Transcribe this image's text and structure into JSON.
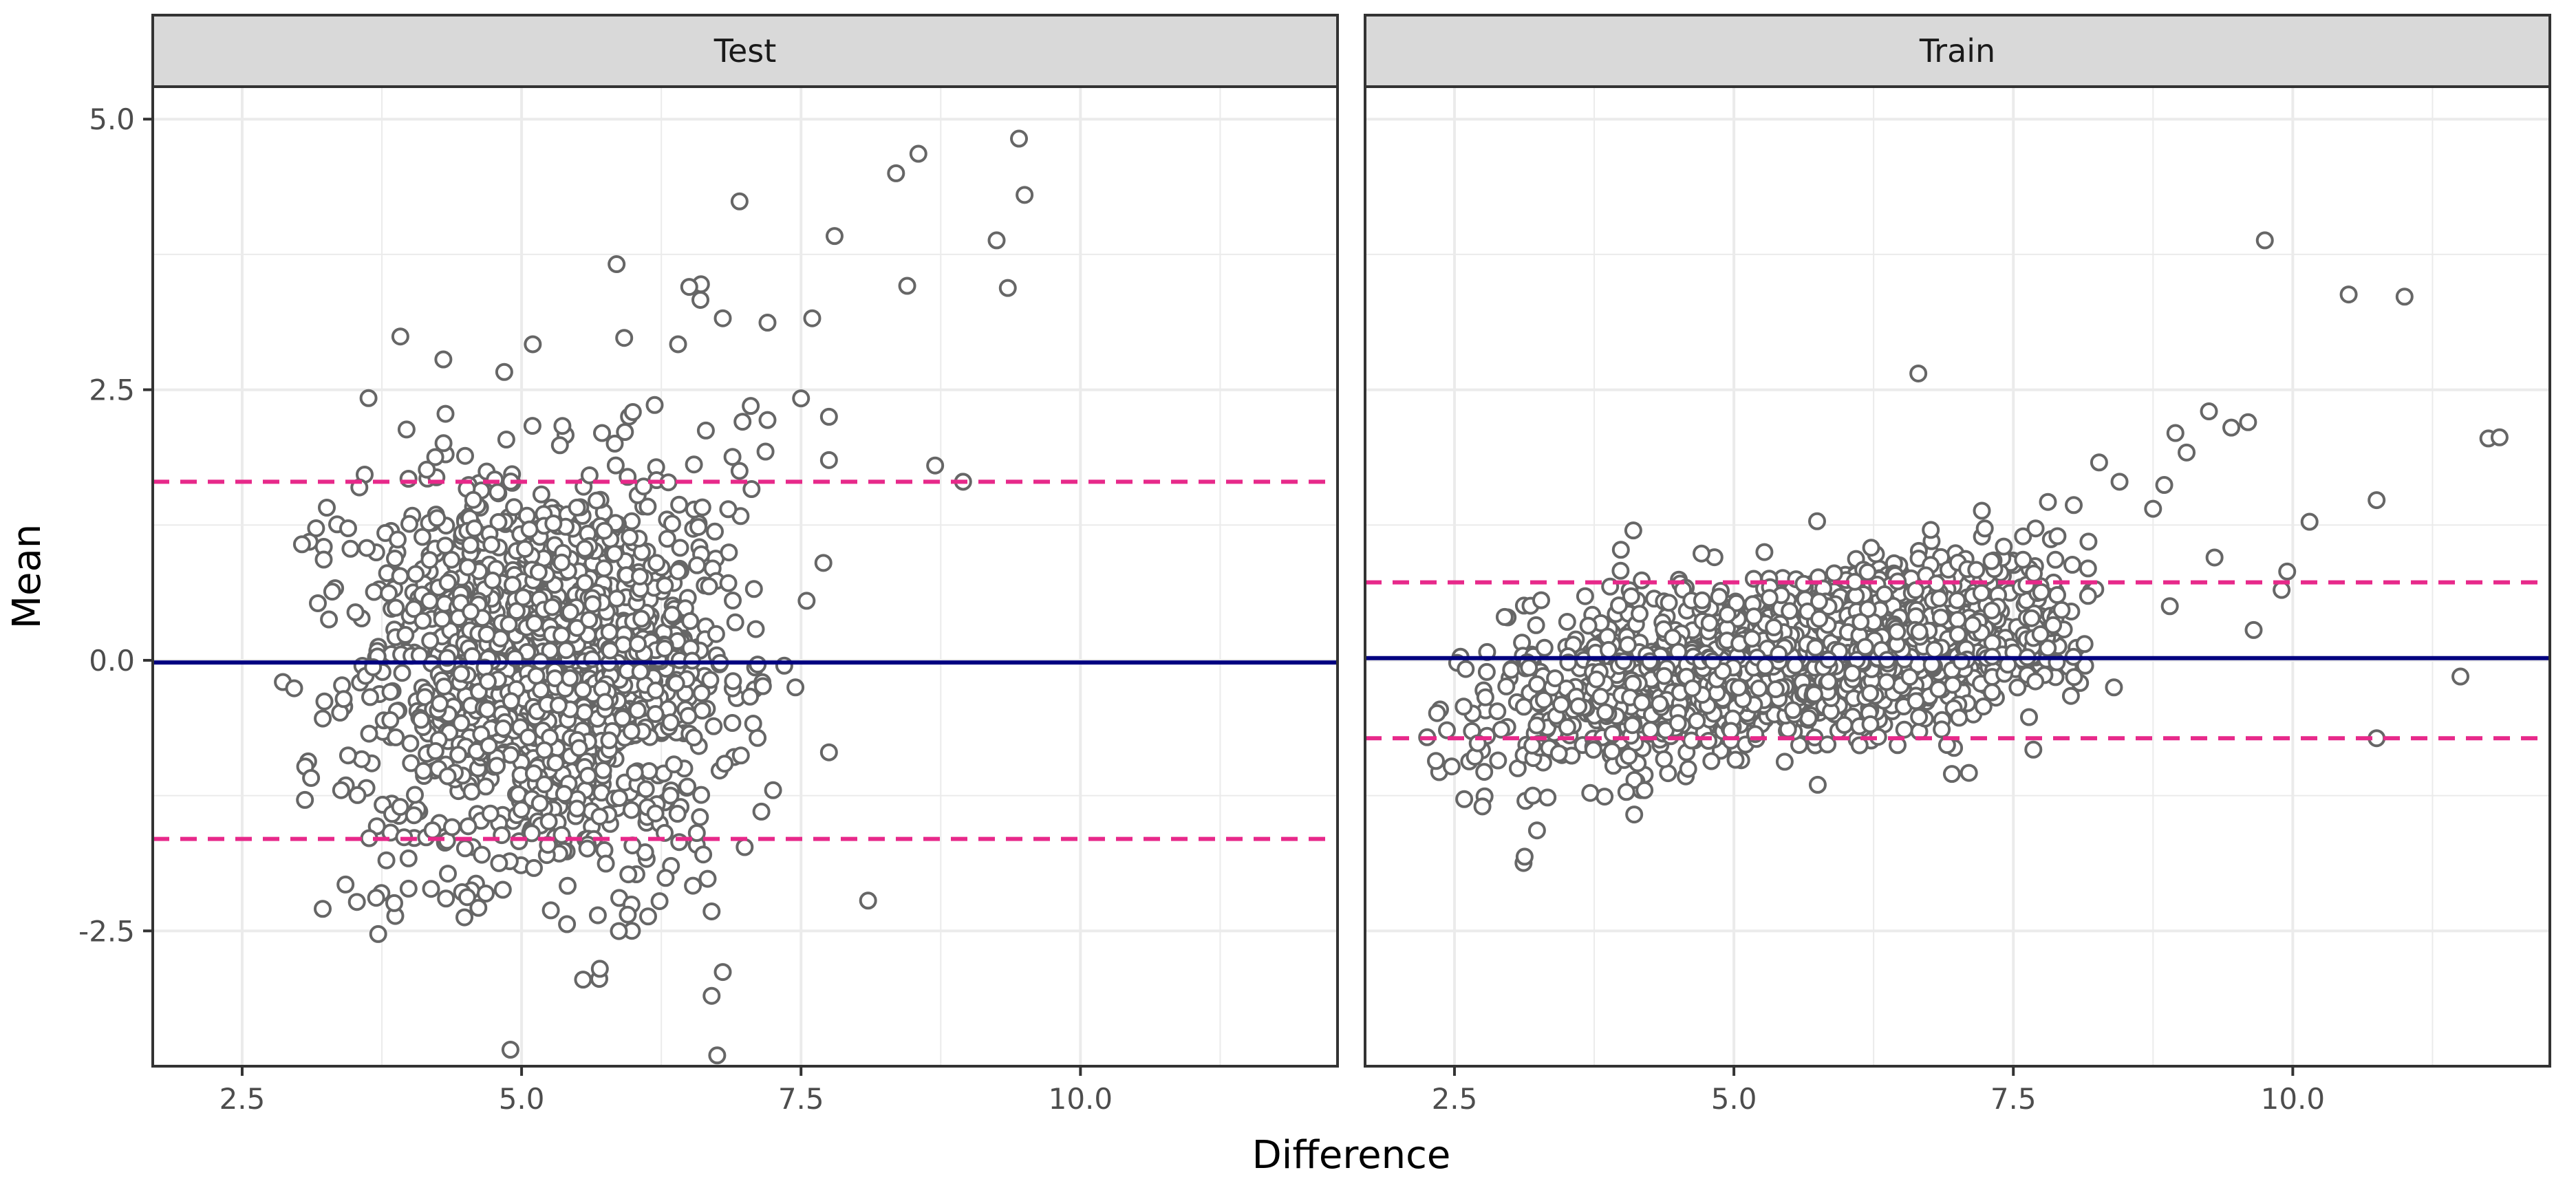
{
  "chart_data": {
    "type": "scatter",
    "title": "",
    "xlabel": "Difference",
    "ylabel": "Mean",
    "xlim": [
      1.7,
      12.3
    ],
    "ylim": [
      -3.75,
      5.3
    ],
    "xticks": [
      2.5,
      5.0,
      7.5,
      10.0
    ],
    "xtick_labels": [
      "2.5",
      "5.0",
      "7.5",
      "10.0"
    ],
    "yticks": [
      -2.5,
      0.0,
      2.5,
      5.0
    ],
    "ytick_labels": [
      "-2.5",
      "0.0",
      "2.5",
      "5.0"
    ],
    "colors": {
      "points": "#666666",
      "mean_line": "#000080",
      "limit_lines": "#E7298A",
      "strip": "#D9D9D9",
      "grid": "#EBEBEB"
    },
    "panels": [
      {
        "name": "Test",
        "mean": -0.02,
        "upper_limit": 1.65,
        "lower_limit": -1.65,
        "cloud": {
          "count": 1400,
          "x_center": 5.2,
          "x_sd": 0.85,
          "x_min": 2.8,
          "x_max": 7.2,
          "y_sd_base": 0.85,
          "y_sd_slope": 0.12,
          "y_trend_slope": 0.0
        },
        "outliers": [
          [
            9.45,
            4.82
          ],
          [
            9.5,
            4.3
          ],
          [
            8.55,
            4.68
          ],
          [
            8.35,
            4.5
          ],
          [
            6.95,
            4.24
          ],
          [
            7.8,
            3.92
          ],
          [
            9.25,
            3.88
          ],
          [
            9.35,
            3.44
          ],
          [
            8.45,
            3.46
          ],
          [
            5.85,
            3.66
          ],
          [
            6.5,
            3.45
          ],
          [
            6.6,
            3.33
          ],
          [
            7.6,
            3.16
          ],
          [
            7.2,
            3.12
          ],
          [
            6.8,
            3.16
          ],
          [
            8.7,
            1.8
          ],
          [
            8.95,
            1.65
          ],
          [
            7.75,
            2.25
          ],
          [
            7.75,
            1.85
          ],
          [
            7.5,
            2.42
          ],
          [
            7.2,
            2.22
          ],
          [
            7.7,
            0.9
          ],
          [
            7.55,
            0.55
          ],
          [
            7.45,
            -0.25
          ],
          [
            7.35,
            -0.05
          ],
          [
            7.75,
            -0.85
          ],
          [
            7.25,
            -1.2
          ],
          [
            8.1,
            -2.22
          ],
          [
            6.7,
            -2.32
          ],
          [
            6.8,
            -2.88
          ],
          [
            6.7,
            -3.1
          ],
          [
            6.75,
            -3.65
          ],
          [
            5.7,
            -2.85
          ],
          [
            5.55,
            -2.95
          ],
          [
            5.95,
            -2.35
          ],
          [
            4.3,
            2.78
          ],
          [
            5.1,
            2.92
          ],
          [
            6.4,
            2.92
          ],
          [
            7.05,
            2.35
          ],
          [
            6.95,
            1.75
          ]
        ]
      },
      {
        "name": "Train",
        "mean": 0.02,
        "upper_limit": 0.72,
        "lower_limit": -0.72,
        "cloud": {
          "count": 1900,
          "x_center": 5.6,
          "x_sd": 1.25,
          "x_min": 2.2,
          "x_max": 8.3,
          "y_sd_base": 0.32,
          "y_sd_slope": 0.06,
          "y_trend_slope": 0.18
        },
        "outliers": [
          [
            9.75,
            3.88
          ],
          [
            10.5,
            3.38
          ],
          [
            11.0,
            3.36
          ],
          [
            6.65,
            2.65
          ],
          [
            11.75,
            2.05
          ],
          [
            11.85,
            2.06
          ],
          [
            9.25,
            2.3
          ],
          [
            9.6,
            2.2
          ],
          [
            9.45,
            2.15
          ],
          [
            8.95,
            2.1
          ],
          [
            9.05,
            1.92
          ],
          [
            10.15,
            1.28
          ],
          [
            10.75,
            1.48
          ],
          [
            9.95,
            0.82
          ],
          [
            9.9,
            0.65
          ],
          [
            9.65,
            0.28
          ],
          [
            11.5,
            -0.15
          ],
          [
            10.75,
            -0.72
          ],
          [
            8.85,
            1.62
          ],
          [
            8.75,
            1.4
          ],
          [
            8.45,
            1.65
          ],
          [
            9.3,
            0.95
          ],
          [
            8.9,
            0.5
          ],
          [
            8.4,
            -0.25
          ],
          [
            2.75,
            -1.35
          ],
          [
            3.2,
            -1.25
          ],
          [
            4.2,
            -1.2
          ],
          [
            5.75,
            -1.15
          ],
          [
            6.95,
            -1.05
          ],
          [
            4.1,
            1.2
          ]
        ]
      }
    ]
  }
}
